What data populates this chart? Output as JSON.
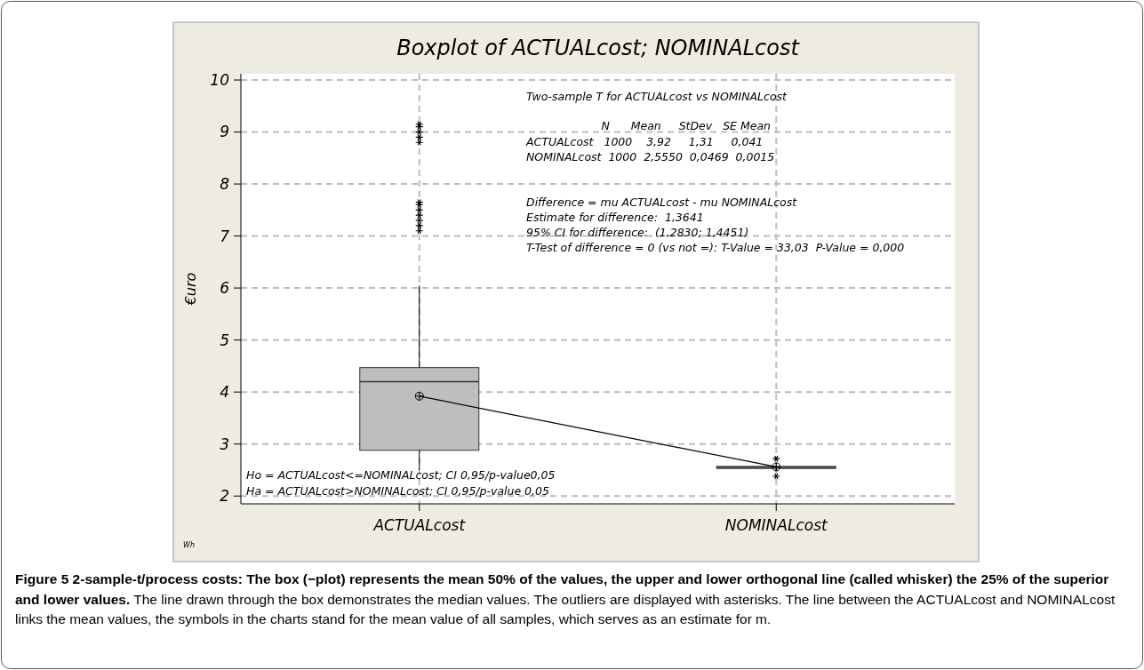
{
  "chart_data": {
    "type": "box",
    "title": "Boxplot of ACTUALcost; NOMINALcost",
    "ylabel": "€uro",
    "categories": [
      "ACTUALcost",
      "NOMINALcost"
    ],
    "ylim": [
      1.85,
      10.12
    ],
    "yticks": [
      2,
      3,
      4,
      5,
      6,
      7,
      8,
      9,
      10
    ],
    "grid": true,
    "series": [
      {
        "color": "#bebebe",
        "boxes": [
          {
            "low": 2.5,
            "q1": 2.88,
            "median": 4.2,
            "q3": 4.47,
            "high": 6.05,
            "mean": 3.92,
            "outliers": [
              7.1,
              7.2,
              7.3,
              7.4,
              7.5,
              7.6,
              7.65,
              8.8,
              8.9,
              9.0,
              9.1,
              9.15
            ]
          },
          {
            "low": 2.49,
            "q1": 2.53,
            "median": 2.55,
            "q3": 2.57,
            "high": 2.61,
            "mean": 2.56,
            "outliers": [
              2.38,
              2.72
            ]
          }
        ]
      },
      {
        "type": "line",
        "color": "#000000",
        "values": [
          3.92,
          2.56
        ]
      }
    ],
    "annotations": [
      "Two-sample T for ACTUALcost vs NOMINALcost",
      "N      Mean     StDev   SE Mean",
      "ACTUALcost   1000    3,92     1,31     0,041",
      "NOMINALcost  1000  2,5550  0,0469  0,0015",
      "Difference = mu ACTUALcost - mu NOMINALcost",
      "Estimate for difference:  1,3641",
      "95% CI for difference:  (1,2830; 1,4451)",
      "T-Test of difference = 0 (vs not =): T-Value = 33,03  P-Value = 0,000",
      "Ho = ACTUALcost<=NOMINALcost; CI 0,95/p-value0,05",
      "Ha = ACTUALcost>NOMINALcost; CI 0,95/p-value 0,05",
      "Wh",
      "Figure 5 2-sample-t/process costs: The box (−plot) represents the mean 50% of the values, the upper and lower orthogonal line (called whisker) the 25% of the superior and lower values.",
      "The line drawn through the box demonstrates the median values. The outliers are displayed with asterisks. The line between the ACTUALcost and NOMINALcost links the mean values, the symbols in the charts stand for the mean value of all samples, which serves as an estimate for m."
    ]
  }
}
